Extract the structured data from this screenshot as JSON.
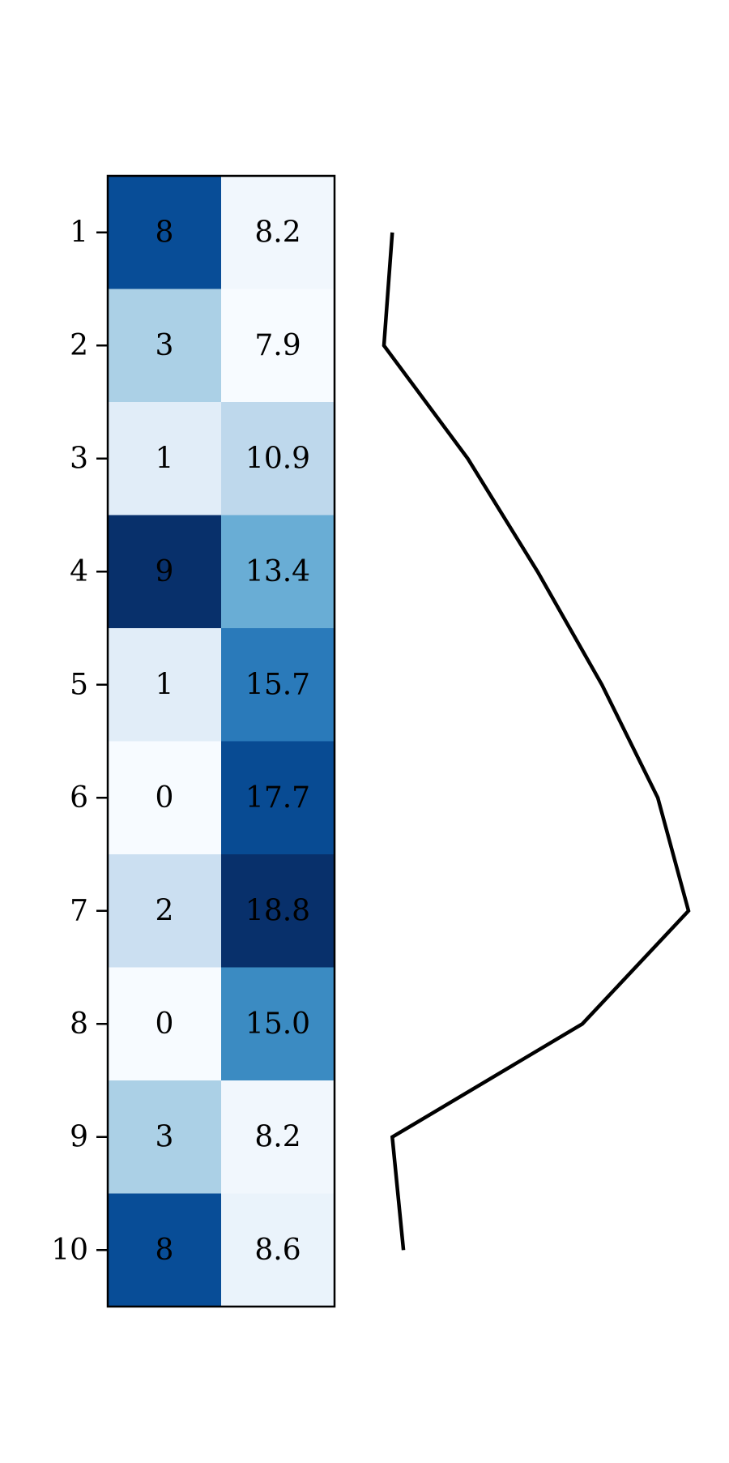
{
  "chart_data": [
    {
      "type": "heatmap",
      "title": "",
      "xlabel": "",
      "ylabel": "",
      "y_tick_labels": [
        "1",
        "2",
        "3",
        "4",
        "5",
        "6",
        "7",
        "8",
        "9",
        "10"
      ],
      "columns": [
        {
          "values": [
            8,
            3,
            1,
            9,
            1,
            0,
            2,
            0,
            3,
            8
          ],
          "labels": [
            "8",
            "3",
            "1",
            "9",
            "1",
            "0",
            "2",
            "0",
            "3",
            "8"
          ]
        },
        {
          "values": [
            8.2,
            7.9,
            10.9,
            13.4,
            15.7,
            17.7,
            18.8,
            15.0,
            8.2,
            8.6
          ],
          "labels": [
            "8.2",
            "7.9",
            "10.9",
            "13.4",
            "15.7",
            "17.7",
            "18.8",
            "15.0",
            "8.2",
            "8.6"
          ]
        }
      ],
      "colormap": "Blues",
      "grid": false
    },
    {
      "type": "line",
      "orientation": "vertical-profile",
      "x": [
        8.2,
        7.9,
        10.9,
        13.4,
        15.7,
        17.7,
        18.8,
        15.0,
        8.2,
        8.6
      ],
      "y": [
        1,
        2,
        3,
        4,
        5,
        6,
        7,
        8,
        9,
        10
      ],
      "color": "#000000",
      "axes_visible": false
    }
  ]
}
